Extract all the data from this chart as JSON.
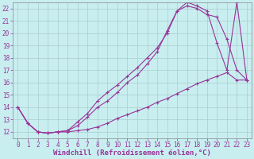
{
  "xlabel": "Windchill (Refroidissement éolien,°C)",
  "bg_color": "#c8eef0",
  "line_color": "#993399",
  "grid_color": "#aacccc",
  "xlim": [
    -0.5,
    23.5
  ],
  "ylim": [
    11.5,
    22.5
  ],
  "xticks": [
    0,
    1,
    2,
    3,
    4,
    5,
    6,
    7,
    8,
    9,
    10,
    11,
    12,
    13,
    14,
    15,
    16,
    17,
    18,
    19,
    20,
    21,
    22,
    23
  ],
  "yticks": [
    12,
    13,
    14,
    15,
    16,
    17,
    18,
    19,
    20,
    21,
    22
  ],
  "line1_x": [
    0,
    1,
    2,
    3,
    4,
    5,
    6,
    7,
    8,
    9,
    10,
    11,
    12,
    13,
    14,
    15,
    16,
    17,
    18,
    19,
    20,
    21,
    22,
    23
  ],
  "line1_y": [
    14.0,
    12.7,
    12.0,
    11.9,
    12.0,
    12.0,
    12.1,
    12.2,
    12.4,
    12.7,
    13.1,
    13.4,
    13.7,
    14.0,
    14.4,
    14.7,
    15.1,
    15.5,
    15.9,
    16.2,
    16.5,
    16.8,
    16.2,
    16.2
  ],
  "line2_x": [
    0,
    1,
    2,
    3,
    4,
    5,
    6,
    7,
    8,
    9,
    10,
    11,
    12,
    13,
    14,
    15,
    16,
    17,
    18,
    19,
    20,
    21,
    22,
    23
  ],
  "line2_y": [
    14.0,
    12.7,
    12.0,
    11.9,
    12.0,
    12.1,
    12.5,
    13.2,
    14.0,
    14.5,
    15.2,
    16.0,
    16.6,
    17.5,
    18.5,
    20.2,
    21.8,
    22.2,
    22.0,
    21.5,
    21.3,
    19.5,
    17.0,
    16.2
  ],
  "line3_x": [
    0,
    1,
    2,
    3,
    4,
    5,
    6,
    7,
    8,
    9,
    10,
    11,
    12,
    13,
    14,
    15,
    16,
    17,
    18,
    19,
    20,
    21,
    22,
    23
  ],
  "line3_y": [
    14.0,
    12.7,
    12.0,
    11.9,
    12.0,
    12.1,
    12.8,
    13.5,
    14.5,
    15.2,
    15.8,
    16.5,
    17.2,
    18.0,
    18.8,
    20.0,
    21.8,
    22.5,
    22.2,
    21.8,
    19.2,
    17.0,
    22.5,
    16.2
  ],
  "marker": "+",
  "markersize": 3,
  "linewidth": 0.8,
  "tick_fontsize": 5.5,
  "label_fontsize": 6.5,
  "tick_color": "#993399",
  "label_color": "#993399",
  "spine_color": "#888888"
}
